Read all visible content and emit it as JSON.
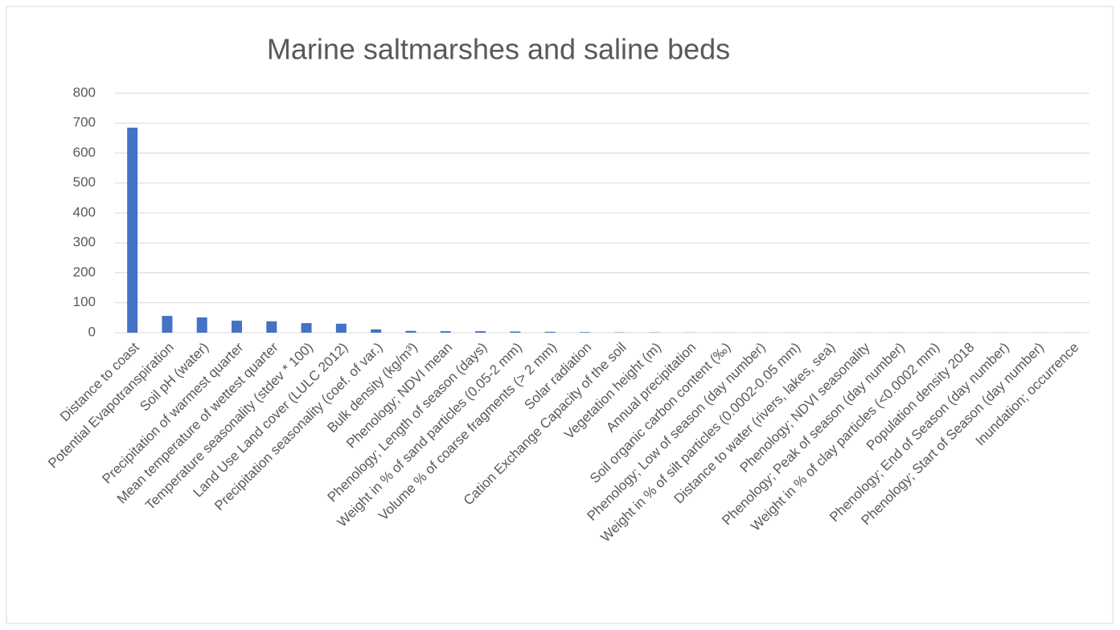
{
  "chart_data": {
    "type": "bar",
    "title": "Marine saltmarshes and saline beds",
    "categories": [
      "Distance to coast",
      "Potential Evapotranspiration",
      "Soil pH (water)",
      "Precipitation of warmest quarter",
      "Mean temperature of wettest quarter",
      "Temperature seasonality (stdev * 100)",
      "Land Use Land cover (LULC 2012)",
      "Precipitation seasonality (coef. of var.)",
      "Bulk density (kg/m³)",
      "Phenology; NDVI mean",
      "Phenology; Length of season (days)",
      "Weight in % of sand particles (0.05-2 mm)",
      "Volume % of coarse fragments (> 2 mm)",
      "Solar radiation",
      "Cation Exchange Capacity of the soil",
      "Vegetation height (m)",
      "Annual precipitation",
      "Soil organic carbon content (‰)",
      "Phenology; Low of season (day number)",
      "Weight in % of silt particles (0.0002-0.05 mm)",
      "Distance to water (rivers, lakes, sea)",
      "Phenology; NDVI seasonality",
      "Phenology; Peak of season (day number)",
      "Weight in % of clay particles (<0.0002 mm)",
      "Population density 2018",
      "Phenology; End of Season (day number)",
      "Phenology; Start of Season (day number)",
      "Inundation; occurrence"
    ],
    "values": [
      685,
      56,
      51,
      40,
      38,
      32,
      30,
      11,
      6,
      5,
      5,
      4,
      3,
      2,
      1,
      1,
      0.5,
      0.3,
      0.2,
      0.2,
      0.1,
      0.1,
      0.1,
      0.1,
      0.1,
      0.1,
      0.1,
      0.1
    ],
    "color": "#4472c4",
    "ylim": [
      0,
      800
    ],
    "yticks": [
      0,
      100,
      200,
      300,
      400,
      500,
      600,
      700,
      800
    ],
    "grid": true
  }
}
